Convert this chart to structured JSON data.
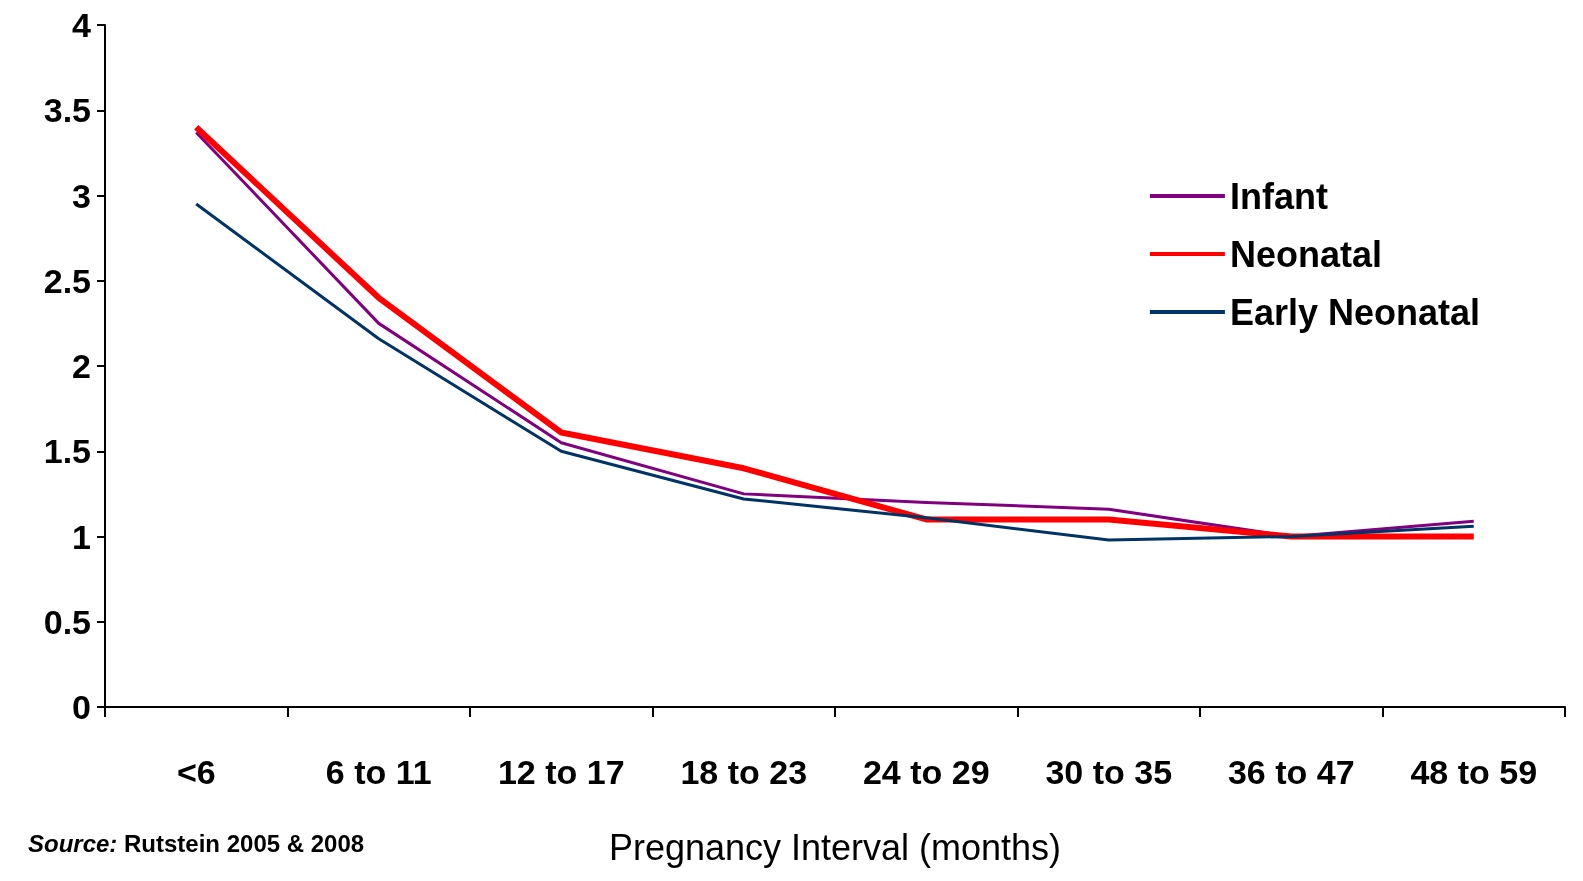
{
  "chart_data": {
    "type": "line",
    "xlabel": "Pregnancy Interval (months)",
    "categories": [
      "<6",
      "6 to 11",
      "12 to 17",
      "18 to 23",
      "24 to 29",
      "30 to 35",
      "36 to 47",
      "48 to 59"
    ],
    "series": [
      {
        "name": "Infant",
        "color": "#800080",
        "values": [
          3.37,
          2.25,
          1.55,
          1.25,
          1.2,
          1.16,
          1.0,
          1.09
        ]
      },
      {
        "name": "Neonatal",
        "color": "#ff0000",
        "values": [
          3.4,
          2.4,
          1.61,
          1.4,
          1.1,
          1.1,
          1.0,
          1.0
        ]
      },
      {
        "name": "Early Neonatal",
        "color": "#003366",
        "values": [
          2.95,
          2.16,
          1.5,
          1.22,
          1.11,
          0.98,
          1.0,
          1.06
        ]
      }
    ],
    "ylim": [
      0,
      4
    ],
    "yticks": [
      0,
      0.5,
      1,
      1.5,
      2,
      2.5,
      3,
      3.5,
      4
    ],
    "grid": false,
    "legend": "top right",
    "marker": "none",
    "annotations": [
      "Source: Rutstein 2005 & 2008"
    ]
  }
}
